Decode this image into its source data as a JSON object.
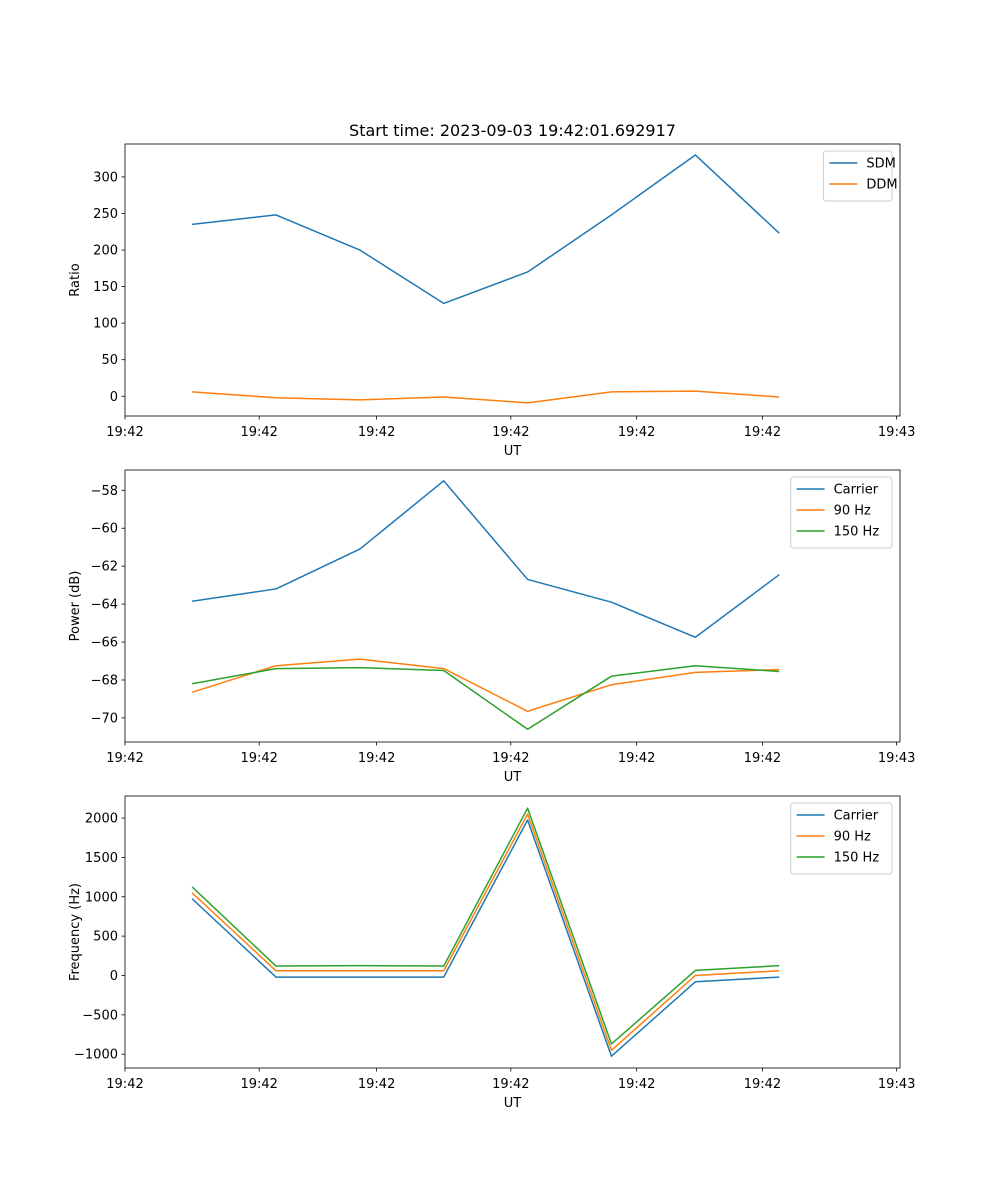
{
  "chart_data": [
    {
      "type": "line",
      "title": "Start time: 2023-09-03 19:42:01.692917",
      "xlabel": "UT",
      "ylabel": "Ratio",
      "x": [
        1,
        2,
        3,
        4,
        5,
        6,
        7,
        8
      ],
      "xlim": [
        0.2,
        9.44
      ],
      "xticks": [
        {
          "x": 0.2,
          "label": "19:42"
        },
        {
          "x": 1.8,
          "label": "19:42"
        },
        {
          "x": 3.2,
          "label": "19:42"
        },
        {
          "x": 4.8,
          "label": "19:42"
        },
        {
          "x": 6.3,
          "label": "19:42"
        },
        {
          "x": 7.8,
          "label": "19:42"
        },
        {
          "x": 9.4,
          "label": "19:43"
        }
      ],
      "ylim": [
        -27,
        345
      ],
      "yticks": [
        0,
        50,
        100,
        150,
        200,
        250,
        300
      ],
      "legend": "upper right",
      "series": [
        {
          "name": "SDM",
          "color": "#1f77b4",
          "values": [
            235,
            248,
            200,
            127,
            170,
            248,
            330,
            223
          ]
        },
        {
          "name": "DDM",
          "color": "#ff7f0e",
          "values": [
            6,
            -2,
            -5,
            -1,
            -9,
            6,
            7,
            -1
          ]
        }
      ]
    },
    {
      "type": "line",
      "title": "",
      "xlabel": "UT",
      "ylabel": "Power (dB)",
      "x": [
        1,
        2,
        3,
        4,
        5,
        6,
        7,
        8
      ],
      "xlim": [
        0.2,
        9.44
      ],
      "xticks": [
        {
          "x": 0.2,
          "label": "19:42"
        },
        {
          "x": 1.8,
          "label": "19:42"
        },
        {
          "x": 3.2,
          "label": "19:42"
        },
        {
          "x": 4.8,
          "label": "19:42"
        },
        {
          "x": 6.3,
          "label": "19:42"
        },
        {
          "x": 7.8,
          "label": "19:42"
        },
        {
          "x": 9.4,
          "label": "19:43"
        }
      ],
      "ylim": [
        -71.27,
        -56.93
      ],
      "yticks": [
        -70,
        -68,
        -66,
        -64,
        -62,
        -60,
        -58
      ],
      "legend": "upper right",
      "series": [
        {
          "name": "Carrier",
          "color": "#1f77b4",
          "values": [
            -63.85,
            -63.2,
            -61.1,
            -57.5,
            -62.7,
            -63.9,
            -65.75,
            -62.45
          ]
        },
        {
          "name": "90 Hz",
          "color": "#ff7f0e",
          "values": [
            -68.65,
            -67.25,
            -66.9,
            -67.4,
            -69.65,
            -68.25,
            -67.6,
            -67.45
          ]
        },
        {
          "name": "150 Hz",
          "color": "#2ca02c",
          "values": [
            -68.2,
            -67.4,
            -67.35,
            -67.5,
            -70.6,
            -67.8,
            -67.25,
            -67.55
          ]
        }
      ]
    },
    {
      "type": "line",
      "title": "",
      "xlabel": "UT",
      "ylabel": "Frequency (Hz)",
      "x": [
        1,
        2,
        3,
        4,
        5,
        6,
        7,
        8
      ],
      "xlim": [
        0.2,
        9.44
      ],
      "xticks": [
        {
          "x": 0.2,
          "label": "19:42"
        },
        {
          "x": 1.8,
          "label": "19:42"
        },
        {
          "x": 3.2,
          "label": "19:42"
        },
        {
          "x": 4.8,
          "label": "19:42"
        },
        {
          "x": 6.3,
          "label": "19:42"
        },
        {
          "x": 7.8,
          "label": "19:42"
        },
        {
          "x": 9.4,
          "label": "19:43"
        }
      ],
      "ylim": [
        -1175,
        2280
      ],
      "yticks": [
        -1000,
        -500,
        0,
        500,
        1000,
        1500,
        2000
      ],
      "legend": "upper right",
      "series": [
        {
          "name": "Carrier",
          "color": "#1f77b4",
          "values": [
            975,
            -20,
            -20,
            -20,
            1975,
            -1025,
            -80,
            -20
          ]
        },
        {
          "name": "90 Hz",
          "color": "#ff7f0e",
          "values": [
            1050,
            60,
            60,
            60,
            2050,
            -950,
            0,
            60
          ]
        },
        {
          "name": "150 Hz",
          "color": "#2ca02c",
          "values": [
            1125,
            120,
            125,
            120,
            2125,
            -870,
            65,
            125
          ]
        }
      ]
    }
  ]
}
